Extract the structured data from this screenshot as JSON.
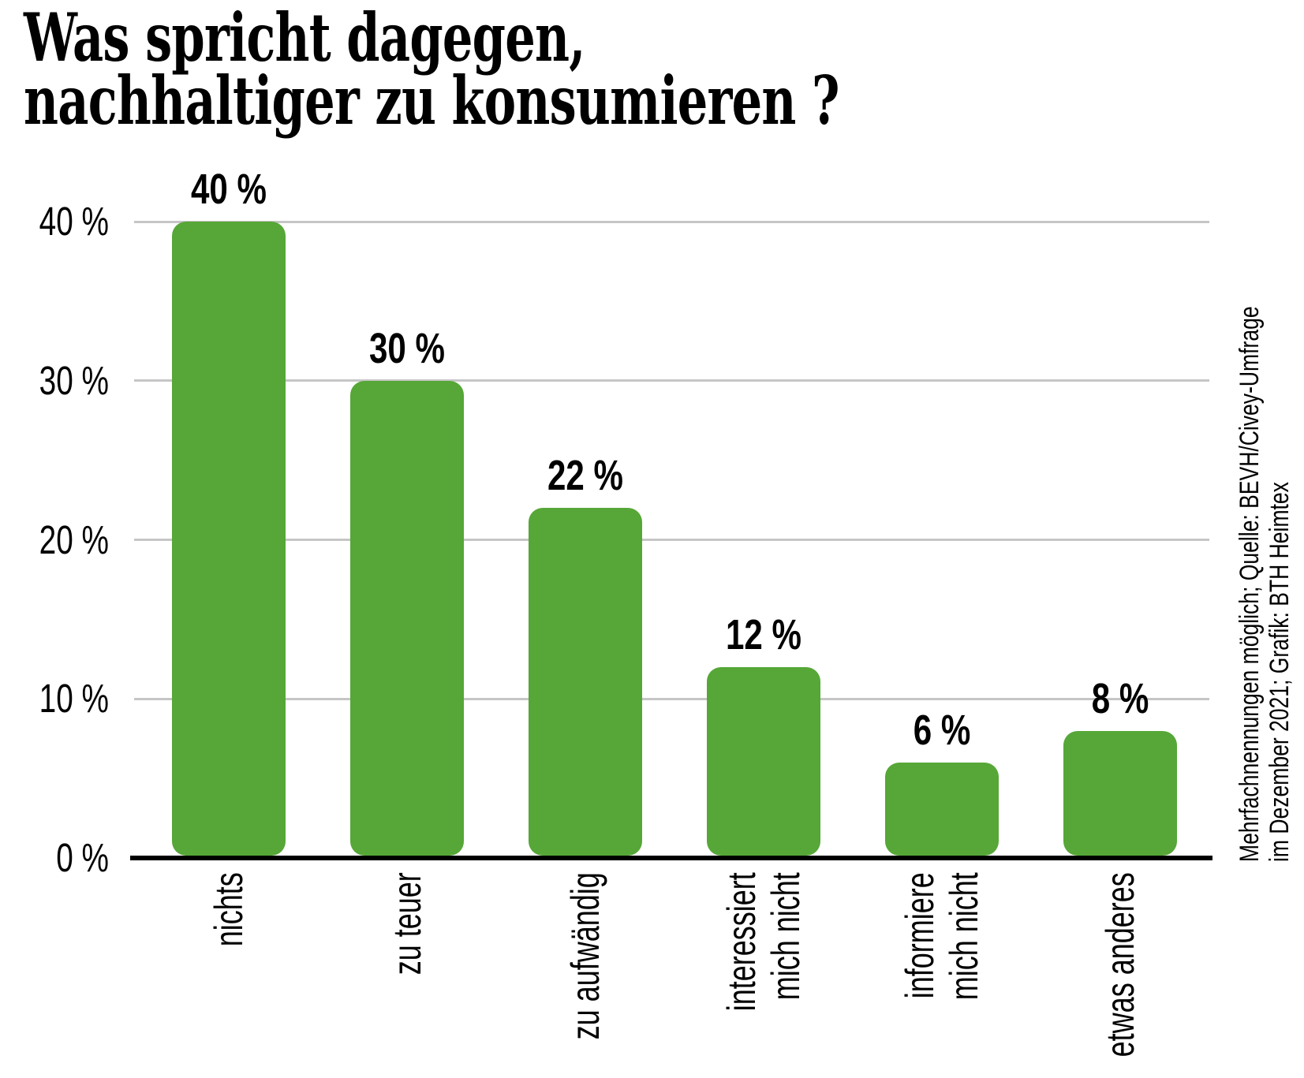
{
  "title": {
    "line1": "Was spricht dagegen,",
    "line2": "nachhaltiger zu konsumieren ?"
  },
  "chart_data": {
    "type": "bar",
    "title": "Was spricht dagegen, nachhaltiger zu konsumieren ?",
    "categories": [
      "nichts",
      "zu teuer",
      "zu aufwändig",
      "interessiert mich nicht",
      "informiere mich nicht",
      "etwas anderes"
    ],
    "category_lines": [
      [
        "nichts"
      ],
      [
        "zu teuer"
      ],
      [
        "zu aufwändig"
      ],
      [
        "interessiert",
        "mich nicht"
      ],
      [
        "informiere",
        "mich nicht"
      ],
      [
        "etwas anderes"
      ]
    ],
    "values": [
      40,
      30,
      22,
      12,
      6,
      8
    ],
    "value_labels": [
      "40 %",
      "30 %",
      "22 %",
      "12 %",
      "6 %",
      "8 %"
    ],
    "unit": "%",
    "y_ticks": [
      {
        "value": 40,
        "label": "40 %"
      },
      {
        "value": 30,
        "label": "30 %"
      },
      {
        "value": 20,
        "label": "20 %"
      },
      {
        "value": 10,
        "label": "10 %"
      },
      {
        "value": 0,
        "label": "0 %"
      }
    ],
    "ylim": [
      0,
      42
    ],
    "grid": true,
    "legend": "none",
    "xlabel": "",
    "ylabel": "",
    "bar_color": "#56a737",
    "gridline_color": "#c6c6c6",
    "axis_color": "#000000",
    "x_label_rotation_deg": -90
  },
  "source_note": {
    "line1": "Mehrfachnennungen möglich; Quelle: BEVH/Civey-Umfrage",
    "line2": "im Dezember 2021; Grafik: BTH Heimtex"
  }
}
